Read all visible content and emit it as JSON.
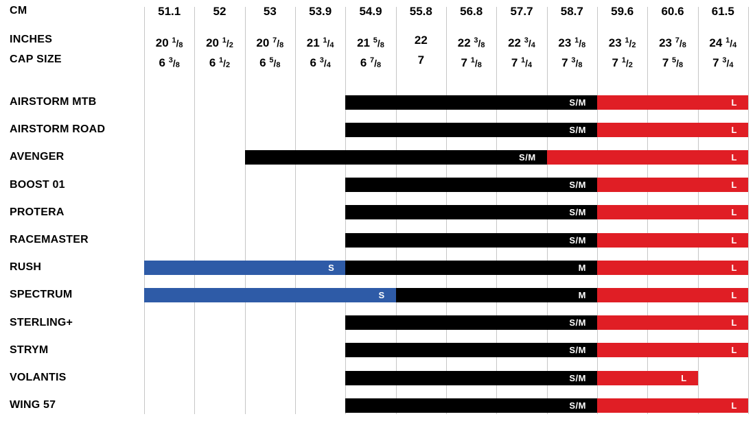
{
  "header": {
    "cm_label": "CM",
    "inches_label": "INCHES",
    "cap_size_label": "CAP SIZE"
  },
  "chart_data": {
    "type": "table",
    "columns": [
      {
        "cm": "51.1",
        "inches": "20 1/8",
        "cap_size": "6 3/8"
      },
      {
        "cm": "52",
        "inches": "20 1/2",
        "cap_size": "6 1/2"
      },
      {
        "cm": "53",
        "inches": "20 7/8",
        "cap_size": "6 5/8"
      },
      {
        "cm": "53.9",
        "inches": "21 1/4",
        "cap_size": "6 3/4"
      },
      {
        "cm": "54.9",
        "inches": "21 5/8",
        "cap_size": "6 7/8"
      },
      {
        "cm": "55.8",
        "inches": "22",
        "cap_size": "7"
      },
      {
        "cm": "56.8",
        "inches": "22 3/8",
        "cap_size": "7 1/8"
      },
      {
        "cm": "57.7",
        "inches": "22 3/4",
        "cap_size": "7 1/4"
      },
      {
        "cm": "58.7",
        "inches": "23 1/8",
        "cap_size": "7 3/8"
      },
      {
        "cm": "59.6",
        "inches": "23 1/2",
        "cap_size": "7 1/2"
      },
      {
        "cm": "60.6",
        "inches": "23 7/8",
        "cap_size": "7 5/8"
      },
      {
        "cm": "61.5",
        "inches": "24 1/4",
        "cap_size": "7 3/4"
      }
    ],
    "colors": {
      "blue": "#2e5ba7",
      "black": "#000000",
      "red": "#e01e25"
    },
    "rows": [
      {
        "model": "AIRSTORM MTB",
        "segments": [
          {
            "size": "S/M",
            "color": "black",
            "col_start": 4,
            "col_end": 9
          },
          {
            "size": "L",
            "color": "red",
            "col_start": 9,
            "col_end": 12
          }
        ]
      },
      {
        "model": "AIRSTORM ROAD",
        "segments": [
          {
            "size": "S/M",
            "color": "black",
            "col_start": 4,
            "col_end": 9
          },
          {
            "size": "L",
            "color": "red",
            "col_start": 9,
            "col_end": 12
          }
        ]
      },
      {
        "model": "AVENGER",
        "segments": [
          {
            "size": "S/M",
            "color": "black",
            "col_start": 2,
            "col_end": 8
          },
          {
            "size": "L",
            "color": "red",
            "col_start": 8,
            "col_end": 12
          }
        ]
      },
      {
        "model": "BOOST 01",
        "segments": [
          {
            "size": "S/M",
            "color": "black",
            "col_start": 4,
            "col_end": 9
          },
          {
            "size": "L",
            "color": "red",
            "col_start": 9,
            "col_end": 12
          }
        ]
      },
      {
        "model": "PROTERA",
        "segments": [
          {
            "size": "S/M",
            "color": "black",
            "col_start": 4,
            "col_end": 9
          },
          {
            "size": "L",
            "color": "red",
            "col_start": 9,
            "col_end": 12
          }
        ]
      },
      {
        "model": "RACEMASTER",
        "segments": [
          {
            "size": "S/M",
            "color": "black",
            "col_start": 4,
            "col_end": 9
          },
          {
            "size": "L",
            "color": "red",
            "col_start": 9,
            "col_end": 12
          }
        ]
      },
      {
        "model": "RUSH",
        "segments": [
          {
            "size": "S",
            "color": "blue",
            "col_start": 0,
            "col_end": 4
          },
          {
            "size": "M",
            "color": "black",
            "col_start": 4,
            "col_end": 9
          },
          {
            "size": "L",
            "color": "red",
            "col_start": 9,
            "col_end": 12
          }
        ]
      },
      {
        "model": "SPECTRUM",
        "segments": [
          {
            "size": "S",
            "color": "blue",
            "col_start": 0,
            "col_end": 5
          },
          {
            "size": "M",
            "color": "black",
            "col_start": 5,
            "col_end": 9
          },
          {
            "size": "L",
            "color": "red",
            "col_start": 9,
            "col_end": 12
          }
        ]
      },
      {
        "model": "STERLING+",
        "segments": [
          {
            "size": "S/M",
            "color": "black",
            "col_start": 4,
            "col_end": 9
          },
          {
            "size": "L",
            "color": "red",
            "col_start": 9,
            "col_end": 12
          }
        ]
      },
      {
        "model": "STRYM",
        "segments": [
          {
            "size": "S/M",
            "color": "black",
            "col_start": 4,
            "col_end": 9
          },
          {
            "size": "L",
            "color": "red",
            "col_start": 9,
            "col_end": 12
          }
        ]
      },
      {
        "model": "VOLANTIS",
        "segments": [
          {
            "size": "S/M",
            "color": "black",
            "col_start": 4,
            "col_end": 9
          },
          {
            "size": "L",
            "color": "red",
            "col_start": 9,
            "col_end": 11
          }
        ]
      },
      {
        "model": "WING 57",
        "segments": [
          {
            "size": "S/M",
            "color": "black",
            "col_start": 4,
            "col_end": 9
          },
          {
            "size": "L",
            "color": "red",
            "col_start": 9,
            "col_end": 12
          }
        ]
      }
    ]
  }
}
